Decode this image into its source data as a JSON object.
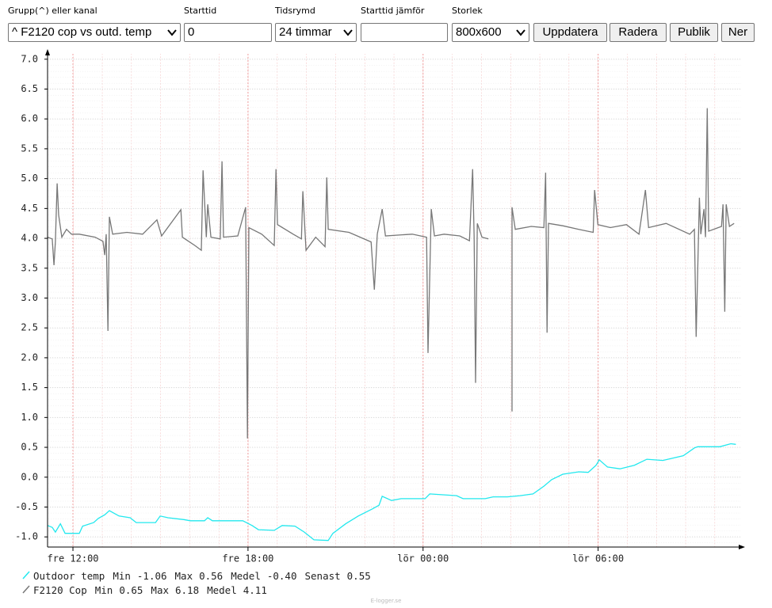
{
  "form": {
    "fields": [
      {
        "label": "Grupp(^) eller kanal",
        "value": "^ F2120 cop vs outd. temp"
      },
      {
        "label": "Starttid",
        "value": "0"
      },
      {
        "label": "Tidsrymd",
        "value": "24 timmar"
      },
      {
        "label": "Starttid jämför"
      },
      {
        "label": "Storlek",
        "value": "800x600"
      }
    ],
    "buttons": [
      "Uppdatera",
      "Radera",
      "Publik",
      "Ner"
    ]
  },
  "chart_data": {
    "type": "line",
    "xlim": [
      11.13,
      34.9
    ],
    "ylim": [
      -1.17,
      7.09
    ],
    "xticks": [
      {
        "value": 12,
        "label": "fre 12:00"
      },
      {
        "value": 18,
        "label": "fre 18:00"
      },
      {
        "value": 24,
        "label": "lör 00:00"
      },
      {
        "value": 30,
        "label": "lör 06:00"
      }
    ],
    "yticks": [
      {
        "value": -1,
        "label": "-1.0"
      },
      -0.5,
      {
        "value": 0,
        "label": "0.0"
      },
      0.5,
      {
        "value": 1,
        "label": "1.0"
      },
      1.5,
      {
        "value": 2,
        "label": "2.0"
      },
      2.5,
      {
        "value": 3,
        "label": "3.0"
      },
      3.5,
      {
        "value": 4,
        "label": "4.0"
      },
      4.5,
      {
        "value": 5,
        "label": "5.0"
      },
      5.5,
      {
        "value": 6,
        "label": "6.0"
      },
      6.5,
      {
        "value": 7,
        "label": "7.0"
      }
    ],
    "grid": true,
    "series": [
      {
        "name": "Outdoor temp",
        "color": "#22e8ee",
        "stats": [
          {
            "name": "Min",
            "value": -1.06
          },
          {
            "name": "Max",
            "value": 0.56
          },
          {
            "name": "Medel",
            "value": -0.4,
            "value_label": "-0.40"
          },
          {
            "name": "Senast",
            "value": 0.55
          }
        ],
        "x": [
          11.13,
          11.29,
          11.4,
          11.57,
          11.73,
          12.22,
          12.33,
          12.71,
          12.87,
          13.09,
          13.25,
          13.58,
          13.96,
          14.17,
          14.83,
          14.99,
          15.26,
          15.8,
          16.02,
          16.51,
          16.62,
          16.78,
          17.82,
          18.14,
          18.36,
          18.9,
          19.17,
          19.61,
          19.93,
          20.26,
          20.75,
          20.91,
          21.35,
          21.78,
          22.27,
          22.49,
          22.6,
          22.92,
          23.25,
          24.07,
          24.23,
          25.15,
          25.37,
          26.13,
          26.4,
          26.89,
          27.33,
          27.77,
          28.14,
          28.41,
          28.79,
          29.34,
          29.66,
          29.93,
          30.04,
          30.32,
          30.75,
          31.24,
          31.67,
          32.22,
          32.92,
          33.3,
          33.41,
          34.17,
          34.55,
          34.72
        ],
        "values": [
          -0.81,
          -0.84,
          -0.92,
          -0.78,
          -0.94,
          -0.94,
          -0.82,
          -0.76,
          -0.69,
          -0.63,
          -0.56,
          -0.65,
          -0.68,
          -0.76,
          -0.76,
          -0.65,
          -0.68,
          -0.71,
          -0.73,
          -0.73,
          -0.68,
          -0.73,
          -0.73,
          -0.81,
          -0.88,
          -0.89,
          -0.81,
          -0.82,
          -0.92,
          -1.05,
          -1.06,
          -0.94,
          -0.78,
          -0.65,
          -0.53,
          -0.47,
          -0.32,
          -0.39,
          -0.36,
          -0.36,
          -0.28,
          -0.31,
          -0.36,
          -0.36,
          -0.33,
          -0.33,
          -0.31,
          -0.28,
          -0.15,
          -0.04,
          0.05,
          0.09,
          0.08,
          0.2,
          0.29,
          0.17,
          0.14,
          0.2,
          0.3,
          0.28,
          0.36,
          0.49,
          0.51,
          0.51,
          0.56,
          0.55
        ]
      },
      {
        "name": "F2120 Cop",
        "color": "#777777",
        "stats": [
          {
            "name": "Min",
            "value": 0.65
          },
          {
            "name": "Max",
            "value": 6.18
          },
          {
            "name": "Medel",
            "value": 4.11
          }
        ],
        "x": [
          11.13,
          11.29,
          11.35,
          11.4,
          11.46,
          11.51,
          11.62,
          11.78,
          11.95,
          12.22,
          12.76,
          13.03,
          13.09,
          13.14,
          13.2,
          13.25,
          13.36,
          13.85,
          14.39,
          14.88,
          15.04,
          15.7,
          15.75,
          16.18,
          16.4,
          16.46,
          16.57,
          16.62,
          16.73,
          17.05,
          17.11,
          17.16,
          17.65,
          17.92,
          17.98,
          18.03,
          18.47,
          18.9,
          18.96,
          19.01,
          19.55,
          19.83,
          19.88,
          19.99,
          20.32,
          20.64,
          20.7,
          20.75,
          21.46,
          22.22,
          22.33,
          22.43,
          22.6,
          22.71,
          23.63,
          24.12,
          24.17,
          24.28,
          24.39,
          24.72,
          25.26,
          25.59,
          25.7,
          25.75,
          25.8,
          25.86,
          26.02,
          26.24,
          26.6,
          27.05,
          27.05,
          27.16,
          27.71,
          28.14,
          28.2,
          28.25,
          28.3,
          28.79,
          29.34,
          29.83,
          29.88,
          29.99,
          30.42,
          30.97,
          31.4,
          31.62,
          31.73,
          32.33,
          33.14,
          33.3,
          33.36,
          33.47,
          33.52,
          33.63,
          33.68,
          33.74,
          33.79,
          34.23,
          34.28,
          34.34,
          34.39,
          34.5,
          34.66
        ],
        "values": [
          4.02,
          3.99,
          3.55,
          3.95,
          4.92,
          4.39,
          4.02,
          4.15,
          4.07,
          4.07,
          4.02,
          3.95,
          3.72,
          4.07,
          2.45,
          4.36,
          4.07,
          4.1,
          4.07,
          4.31,
          4.04,
          4.48,
          4.02,
          3.88,
          3.8,
          5.14,
          4.02,
          4.57,
          4.02,
          3.99,
          5.29,
          4.02,
          4.04,
          4.52,
          0.65,
          4.18,
          4.07,
          3.88,
          5.16,
          4.23,
          4.07,
          3.99,
          4.79,
          3.8,
          4.02,
          3.86,
          5.02,
          4.15,
          4.1,
          3.94,
          3.14,
          4.07,
          4.49,
          4.04,
          4.07,
          4.02,
          2.08,
          4.49,
          4.04,
          4.07,
          4.04,
          3.96,
          5.16,
          4.02,
          1.58,
          4.25,
          4.02,
          3.99,
          null,
          1.1,
          4.52,
          4.15,
          4.2,
          4.18,
          5.1,
          2.42,
          4.25,
          4.21,
          4.15,
          4.1,
          4.81,
          4.23,
          4.18,
          4.23,
          4.07,
          4.81,
          4.18,
          4.25,
          4.07,
          4.15,
          2.35,
          4.68,
          4.07,
          4.49,
          4.02,
          6.18,
          4.12,
          4.2,
          4.57,
          2.77,
          4.57,
          4.2,
          4.25
        ]
      }
    ]
  },
  "footer": "E-logger.se"
}
